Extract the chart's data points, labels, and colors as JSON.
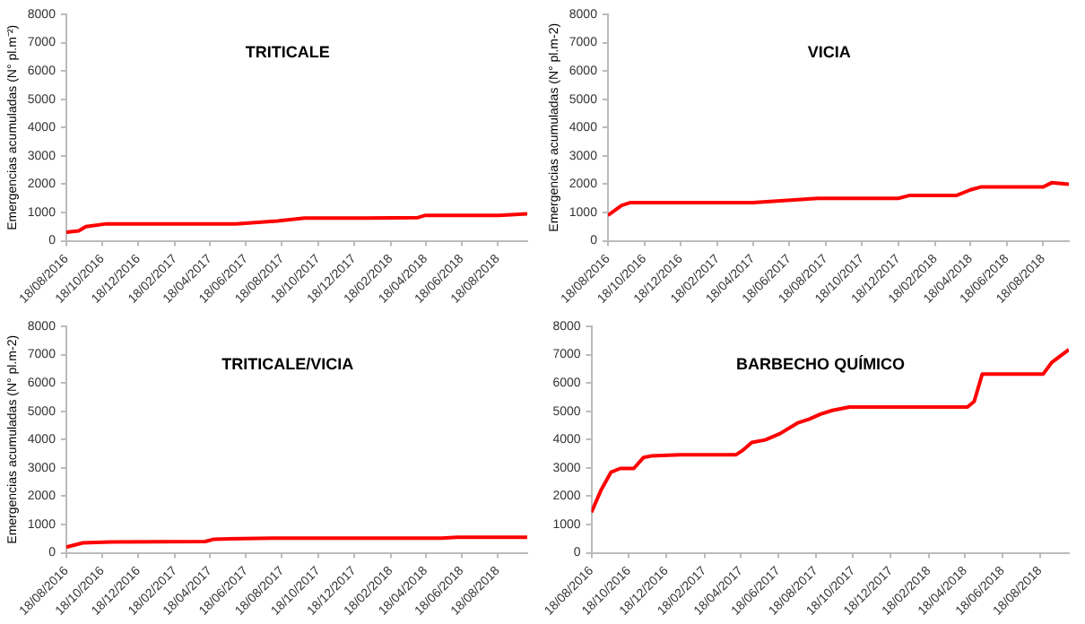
{
  "chart_data": [
    {
      "type": "line",
      "title": "TRITICALE",
      "ylabel": "Emergencias acumuladas (N° pl.m⁻²)",
      "xlim": [
        "2016-08-18",
        "2018-10-07"
      ],
      "ylim": [
        0,
        8000
      ],
      "yticks": [
        0,
        1000,
        2000,
        3000,
        4000,
        5000,
        6000,
        7000,
        8000
      ],
      "xticks": [
        {
          "value": "2016-08-18",
          "label": "18/08/2016"
        },
        {
          "value": "2016-10-18",
          "label": "18/10/2016"
        },
        {
          "value": "2016-12-18",
          "label": "18/12/2016"
        },
        {
          "value": "2017-02-18",
          "label": "18/02/2017"
        },
        {
          "value": "2017-04-18",
          "label": "18/04/2017"
        },
        {
          "value": "2017-06-18",
          "label": "18/06/2017"
        },
        {
          "value": "2017-08-18",
          "label": "18/08/2017"
        },
        {
          "value": "2017-10-18",
          "label": "18/10/2017"
        },
        {
          "value": "2017-12-18",
          "label": "18/12/2017"
        },
        {
          "value": "2018-02-18",
          "label": "18/02/2018"
        },
        {
          "value": "2018-04-18",
          "label": "18/04/2018"
        },
        {
          "value": "2018-06-18",
          "label": "18/06/2018"
        },
        {
          "value": "2018-08-18",
          "label": "18/08/2018"
        }
      ],
      "grid": false,
      "legend": false,
      "marker": "none",
      "line_style": "solid",
      "series": [
        {
          "color": "#ff0000",
          "x": [
            "2016-08-18",
            "2016-09-08",
            "2016-09-20",
            "2016-10-25",
            "2017-06-01",
            "2017-08-10",
            "2017-09-25",
            "2018-01-05",
            "2018-04-05",
            "2018-04-18",
            "2018-08-20",
            "2018-10-07"
          ],
          "values": [
            300,
            350,
            500,
            600,
            600,
            700,
            800,
            800,
            820,
            900,
            900,
            950
          ]
        }
      ]
    },
    {
      "type": "line",
      "title": "VICIA",
      "ylabel": "Emergencias acumuladas (N° pl.m-2)",
      "xlim": [
        "2016-08-18",
        "2018-09-30"
      ],
      "ylim": [
        0,
        8000
      ],
      "yticks": [
        0,
        1000,
        2000,
        3000,
        4000,
        5000,
        6000,
        7000,
        8000
      ],
      "xticks": [
        {
          "value": "2016-08-18",
          "label": "18/08/2016"
        },
        {
          "value": "2016-10-18",
          "label": "18/10/2016"
        },
        {
          "value": "2016-12-18",
          "label": "18/12/2016"
        },
        {
          "value": "2017-02-18",
          "label": "18/02/2017"
        },
        {
          "value": "2017-04-18",
          "label": "18/04/2017"
        },
        {
          "value": "2017-06-18",
          "label": "18/06/2017"
        },
        {
          "value": "2017-08-18",
          "label": "18/08/2017"
        },
        {
          "value": "2017-10-18",
          "label": "18/10/2017"
        },
        {
          "value": "2017-12-18",
          "label": "18/12/2017"
        },
        {
          "value": "2018-02-18",
          "label": "18/02/2018"
        },
        {
          "value": "2018-04-18",
          "label": "18/04/2018"
        },
        {
          "value": "2018-06-18",
          "label": "18/06/2018"
        },
        {
          "value": "2018-08-18",
          "label": "18/08/2018"
        }
      ],
      "grid": false,
      "legend": false,
      "marker": "none",
      "line_style": "solid",
      "series": [
        {
          "color": "#ff0000",
          "x": [
            "2016-08-18",
            "2016-09-10",
            "2016-09-25",
            "2017-04-18",
            "2017-08-05",
            "2017-12-18",
            "2018-01-05",
            "2018-03-25",
            "2018-04-18",
            "2018-05-05",
            "2018-08-18",
            "2018-09-01",
            "2018-09-30"
          ],
          "values": [
            900,
            1250,
            1350,
            1350,
            1500,
            1500,
            1600,
            1600,
            1800,
            1900,
            1900,
            2050,
            2000
          ]
        }
      ]
    },
    {
      "type": "line",
      "title": "TRITICALE/VICIA",
      "ylabel": "Emergencias acumuladas (N° pl.m-2)",
      "xlim": [
        "2016-08-18",
        "2018-10-07"
      ],
      "ylim": [
        0,
        8000
      ],
      "yticks": [
        0,
        1000,
        2000,
        3000,
        4000,
        5000,
        6000,
        7000,
        8000
      ],
      "xticks": [
        {
          "value": "2016-08-18",
          "label": "18/08/2016"
        },
        {
          "value": "2016-10-18",
          "label": "18/10/2016"
        },
        {
          "value": "2016-12-18",
          "label": "18/12/2016"
        },
        {
          "value": "2017-02-18",
          "label": "18/02/2017"
        },
        {
          "value": "2017-04-18",
          "label": "18/04/2017"
        },
        {
          "value": "2017-06-18",
          "label": "18/06/2017"
        },
        {
          "value": "2017-08-18",
          "label": "18/08/2017"
        },
        {
          "value": "2017-10-18",
          "label": "18/10/2017"
        },
        {
          "value": "2017-12-18",
          "label": "18/12/2017"
        },
        {
          "value": "2018-02-18",
          "label": "18/02/2018"
        },
        {
          "value": "2018-04-18",
          "label": "18/04/2018"
        },
        {
          "value": "2018-06-18",
          "label": "18/06/2018"
        },
        {
          "value": "2018-08-18",
          "label": "18/08/2018"
        }
      ],
      "grid": false,
      "legend": false,
      "marker": "none",
      "line_style": "solid",
      "series": [
        {
          "color": "#ff0000",
          "x": [
            "2016-08-18",
            "2016-09-15",
            "2016-11-01",
            "2017-04-10",
            "2017-04-25",
            "2017-08-01",
            "2018-05-15",
            "2018-06-10",
            "2018-10-07"
          ],
          "values": [
            200,
            350,
            380,
            400,
            480,
            520,
            520,
            550,
            550
          ]
        }
      ]
    },
    {
      "type": "line",
      "title": "BARBECHO QUÍMICO",
      "xlim": [
        "2016-08-18",
        "2018-10-04"
      ],
      "ylim": [
        0,
        8000
      ],
      "yticks": [
        0,
        1000,
        2000,
        3000,
        4000,
        5000,
        6000,
        7000,
        8000
      ],
      "xticks": [
        {
          "value": "2016-08-18",
          "label": "18/08/2016"
        },
        {
          "value": "2016-10-18",
          "label": "18/10/2016"
        },
        {
          "value": "2016-12-18",
          "label": "18/12/2016"
        },
        {
          "value": "2017-02-18",
          "label": "18/02/2017"
        },
        {
          "value": "2017-04-18",
          "label": "18/04/2017"
        },
        {
          "value": "2017-06-18",
          "label": "18/06/2017"
        },
        {
          "value": "2017-08-18",
          "label": "18/08/2017"
        },
        {
          "value": "2017-10-18",
          "label": "18/10/2017"
        },
        {
          "value": "2017-12-18",
          "label": "18/12/2017"
        },
        {
          "value": "2018-02-18",
          "label": "18/02/2018"
        },
        {
          "value": "2018-04-18",
          "label": "18/04/2018"
        },
        {
          "value": "2018-06-18",
          "label": "18/06/2018"
        },
        {
          "value": "2018-08-18",
          "label": "18/08/2018"
        }
      ],
      "grid": false,
      "legend": false,
      "marker": "none",
      "line_style": "solid",
      "series": [
        {
          "color": "#ff0000",
          "x": [
            "2016-08-18",
            "2016-09-03",
            "2016-09-19",
            "2016-10-04",
            "2016-10-26",
            "2016-11-11",
            "2016-11-23",
            "2017-01-10",
            "2017-04-10",
            "2017-04-20",
            "2017-05-06",
            "2017-05-28",
            "2017-06-21",
            "2017-07-19",
            "2017-08-07",
            "2017-08-26",
            "2017-09-14",
            "2017-10-12",
            "2018-04-22",
            "2018-05-03",
            "2018-05-16",
            "2018-08-23",
            "2018-09-06",
            "2018-10-04"
          ],
          "values": [
            1430,
            2230,
            2850,
            2980,
            2980,
            3370,
            3420,
            3460,
            3460,
            3600,
            3900,
            3990,
            4210,
            4580,
            4720,
            4900,
            5030,
            5150,
            5150,
            5350,
            6310,
            6310,
            6720,
            7180
          ]
        }
      ]
    }
  ]
}
